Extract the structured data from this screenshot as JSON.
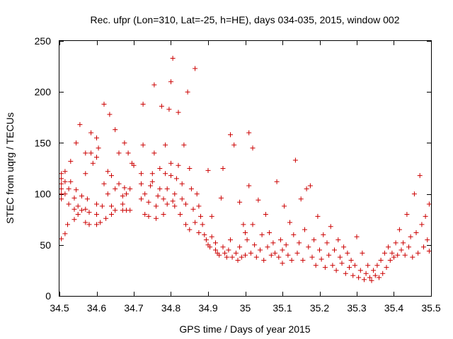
{
  "chart_data": {
    "type": "scatter",
    "title": "Rec. ufpr (Lon=310, Lat=-25, h=HE), days 034-035, 2015, window 002",
    "xlabel": "GPS time / Days of year 2015",
    "ylabel": "STEC from uqrg / TECUs",
    "xlim": [
      34.5,
      35.5
    ],
    "ylim": [
      0,
      250
    ],
    "xticks": [
      34.5,
      34.6,
      34.7,
      34.8,
      34.9,
      35,
      35.1,
      35.2,
      35.3,
      35.4,
      35.5
    ],
    "xtick_labels": [
      "34.5",
      "34.6",
      "34.7",
      "34.8",
      "34.9",
      "35",
      "35.1",
      "35.2",
      "35.3",
      "35.4",
      "35.5"
    ],
    "yticks": [
      0,
      50,
      100,
      150,
      200,
      250
    ],
    "ytick_labels": [
      "0",
      "50",
      "100",
      "150",
      "200",
      "250"
    ],
    "grid": false,
    "marker": "+",
    "color": "#cc0000",
    "series": [
      {
        "name": "STEC",
        "points": [
          [
            34.505,
            56
          ],
          [
            34.505,
            95
          ],
          [
            34.505,
            100
          ],
          [
            34.505,
            105
          ],
          [
            34.505,
            110
          ],
          [
            34.505,
            115
          ],
          [
            34.505,
            120
          ],
          [
            34.515,
            61
          ],
          [
            34.515,
            100
          ],
          [
            34.515,
            112
          ],
          [
            34.515,
            122
          ],
          [
            34.522,
            70
          ],
          [
            34.525,
            90
          ],
          [
            34.525,
            105
          ],
          [
            34.53,
            112
          ],
          [
            34.53,
            132
          ],
          [
            34.54,
            75
          ],
          [
            34.54,
            85
          ],
          [
            34.54,
            96
          ],
          [
            34.545,
            150
          ],
          [
            34.545,
            104
          ],
          [
            34.55,
            80
          ],
          [
            34.55,
            88
          ],
          [
            34.555,
            168
          ],
          [
            34.56,
            98
          ],
          [
            34.56,
            84
          ],
          [
            34.57,
            72
          ],
          [
            34.57,
            85
          ],
          [
            34.57,
            120
          ],
          [
            34.57,
            140
          ],
          [
            34.575,
            95
          ],
          [
            34.58,
            70
          ],
          [
            34.58,
            82
          ],
          [
            34.585,
            140
          ],
          [
            34.585,
            160
          ],
          [
            34.59,
            130
          ],
          [
            34.6,
            70
          ],
          [
            34.6,
            80
          ],
          [
            34.6,
            90
          ],
          [
            34.6,
            136
          ],
          [
            34.6,
            155
          ],
          [
            34.605,
            145
          ],
          [
            34.61,
            72
          ],
          [
            34.615,
            88
          ],
          [
            34.62,
            110
          ],
          [
            34.62,
            188
          ],
          [
            34.625,
            76
          ],
          [
            34.63,
            100
          ],
          [
            34.63,
            122
          ],
          [
            34.635,
            178
          ],
          [
            34.64,
            118
          ],
          [
            34.64,
            88
          ],
          [
            34.64,
            80
          ],
          [
            34.65,
            84
          ],
          [
            34.65,
            105
          ],
          [
            34.65,
            163
          ],
          [
            34.66,
            110
          ],
          [
            34.66,
            140
          ],
          [
            34.67,
            90
          ],
          [
            34.67,
            84
          ],
          [
            34.67,
            98
          ],
          [
            34.675,
            150
          ],
          [
            34.675,
            106
          ],
          [
            34.68,
            84
          ],
          [
            34.68,
            100
          ],
          [
            34.685,
            140
          ],
          [
            34.69,
            105
          ],
          [
            34.69,
            84
          ],
          [
            34.695,
            130
          ],
          [
            34.7,
            128
          ],
          [
            34.72,
            95
          ],
          [
            34.72,
            110
          ],
          [
            34.72,
            120
          ],
          [
            34.725,
            188
          ],
          [
            34.725,
            148
          ],
          [
            34.73,
            80
          ],
          [
            34.73,
            100
          ],
          [
            34.74,
            78
          ],
          [
            34.74,
            92
          ],
          [
            34.745,
            108
          ],
          [
            34.75,
            112
          ],
          [
            34.75,
            120
          ],
          [
            34.755,
            207
          ],
          [
            34.755,
            140
          ],
          [
            34.76,
            76
          ],
          [
            34.76,
            88
          ],
          [
            34.765,
            98
          ],
          [
            34.77,
            105
          ],
          [
            34.77,
            125
          ],
          [
            34.775,
            186
          ],
          [
            34.78,
            80
          ],
          [
            34.78,
            95
          ],
          [
            34.785,
            148
          ],
          [
            34.785,
            120
          ],
          [
            34.79,
            105
          ],
          [
            34.79,
            90
          ],
          [
            34.795,
            183
          ],
          [
            34.8,
            118
          ],
          [
            34.8,
            130
          ],
          [
            34.8,
            210
          ],
          [
            34.805,
            233
          ],
          [
            34.805,
            93
          ],
          [
            34.81,
            88
          ],
          [
            34.81,
            100
          ],
          [
            34.815,
            115
          ],
          [
            34.82,
            180
          ],
          [
            34.82,
            128
          ],
          [
            34.825,
            80
          ],
          [
            34.83,
            95
          ],
          [
            34.83,
            110
          ],
          [
            34.835,
            148
          ],
          [
            34.84,
            70
          ],
          [
            34.84,
            90
          ],
          [
            34.845,
            200
          ],
          [
            34.85,
            65
          ],
          [
            34.85,
            125
          ],
          [
            34.855,
            105
          ],
          [
            34.86,
            85
          ],
          [
            34.865,
            223
          ],
          [
            34.865,
            72
          ],
          [
            34.87,
            100
          ],
          [
            34.875,
            62
          ],
          [
            34.875,
            88
          ],
          [
            34.88,
            78
          ],
          [
            34.885,
            70
          ],
          [
            34.89,
            60
          ],
          [
            34.895,
            55
          ],
          [
            34.9,
            50
          ],
          [
            34.9,
            123
          ],
          [
            34.905,
            48
          ],
          [
            34.91,
            58
          ],
          [
            34.91,
            78
          ],
          [
            34.92,
            45
          ],
          [
            34.92,
            52
          ],
          [
            34.925,
            42
          ],
          [
            34.93,
            40
          ],
          [
            34.935,
            96
          ],
          [
            34.94,
            125
          ],
          [
            34.94,
            48
          ],
          [
            34.945,
            42
          ],
          [
            34.95,
            38
          ],
          [
            34.955,
            45
          ],
          [
            34.96,
            158
          ],
          [
            34.96,
            55
          ],
          [
            34.965,
            38
          ],
          [
            34.97,
            148
          ],
          [
            34.975,
            42
          ],
          [
            34.98,
            35
          ],
          [
            34.985,
            92
          ],
          [
            34.985,
            48
          ],
          [
            34.99,
            38
          ],
          [
            34.995,
            70
          ],
          [
            35.0,
            40
          ],
          [
            35.0,
            62
          ],
          [
            35.005,
            55
          ],
          [
            35.01,
            160
          ],
          [
            35.01,
            108
          ],
          [
            35.015,
            42
          ],
          [
            35.02,
            145
          ],
          [
            35.02,
            70
          ],
          [
            35.025,
            50
          ],
          [
            35.03,
            38
          ],
          [
            35.035,
            94
          ],
          [
            35.04,
            45
          ],
          [
            35.045,
            60
          ],
          [
            35.05,
            35
          ],
          [
            35.055,
            80
          ],
          [
            35.06,
            48
          ],
          [
            35.065,
            62
          ],
          [
            35.07,
            40
          ],
          [
            35.075,
            52
          ],
          [
            35.08,
            42
          ],
          [
            35.085,
            112
          ],
          [
            35.09,
            38
          ],
          [
            35.095,
            55
          ],
          [
            35.1,
            45
          ],
          [
            35.1,
            32
          ],
          [
            35.105,
            88
          ],
          [
            35.11,
            50
          ],
          [
            35.115,
            40
          ],
          [
            35.12,
            72
          ],
          [
            35.125,
            35
          ],
          [
            35.13,
            60
          ],
          [
            35.135,
            133
          ],
          [
            35.14,
            42
          ],
          [
            35.145,
            52
          ],
          [
            35.15,
            95
          ],
          [
            35.155,
            35
          ],
          [
            35.16,
            65
          ],
          [
            35.165,
            105
          ],
          [
            35.17,
            48
          ],
          [
            35.175,
            108
          ],
          [
            35.18,
            38
          ],
          [
            35.185,
            55
          ],
          [
            35.19,
            30
          ],
          [
            35.195,
            78
          ],
          [
            35.2,
            45
          ],
          [
            35.205,
            36
          ],
          [
            35.21,
            60
          ],
          [
            35.215,
            28
          ],
          [
            35.22,
            52
          ],
          [
            35.225,
            40
          ],
          [
            35.23,
            68
          ],
          [
            35.235,
            30
          ],
          [
            35.24,
            45
          ],
          [
            35.245,
            25
          ],
          [
            35.25,
            55
          ],
          [
            35.255,
            38
          ],
          [
            35.26,
            32
          ],
          [
            35.265,
            48
          ],
          [
            35.27,
            22
          ],
          [
            35.275,
            42
          ],
          [
            35.28,
            28
          ],
          [
            35.285,
            35
          ],
          [
            35.29,
            20
          ],
          [
            35.295,
            30
          ],
          [
            35.3,
            58
          ],
          [
            35.305,
            18
          ],
          [
            35.31,
            25
          ],
          [
            35.315,
            42
          ],
          [
            35.32,
            16
          ],
          [
            35.325,
            22
          ],
          [
            35.33,
            30
          ],
          [
            35.335,
            18
          ],
          [
            35.34,
            15
          ],
          [
            35.345,
            25
          ],
          [
            35.35,
            20
          ],
          [
            35.355,
            30
          ],
          [
            35.36,
            18
          ],
          [
            35.365,
            35
          ],
          [
            35.37,
            22
          ],
          [
            35.375,
            42
          ],
          [
            35.38,
            28
          ],
          [
            35.385,
            48
          ],
          [
            35.39,
            35
          ],
          [
            35.395,
            42
          ],
          [
            35.4,
            38
          ],
          [
            35.405,
            52
          ],
          [
            35.41,
            40
          ],
          [
            35.415,
            65
          ],
          [
            35.42,
            45
          ],
          [
            35.425,
            52
          ],
          [
            35.43,
            40
          ],
          [
            35.435,
            80
          ],
          [
            35.44,
            48
          ],
          [
            35.445,
            58
          ],
          [
            35.45,
            38
          ],
          [
            35.455,
            100
          ],
          [
            35.46,
            62
          ],
          [
            35.465,
            42
          ],
          [
            35.47,
            118
          ],
          [
            35.475,
            70
          ],
          [
            35.48,
            48
          ],
          [
            35.485,
            78
          ],
          [
            35.49,
            55
          ],
          [
            35.495,
            90
          ],
          [
            35.495,
            44
          ]
        ]
      }
    ]
  }
}
